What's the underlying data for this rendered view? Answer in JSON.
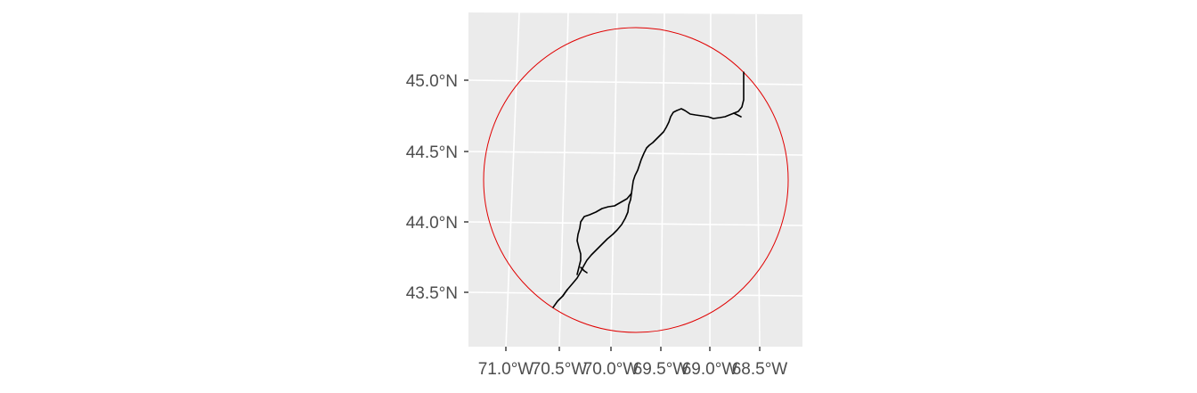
{
  "map": {
    "y_tick_labels": [
      "45.0°N",
      "44.5°N",
      "44.0°N",
      "43.5°N"
    ],
    "x_tick_labels": [
      "71.0°W",
      "70.5°W",
      "70.0°W",
      "69.5°W",
      "69.0°W",
      "68.5°W"
    ],
    "colors": {
      "panel_background": "#ebebeb",
      "grid": "#ffffff",
      "route": "#000000",
      "buffer_circle": "#e00000",
      "tick_text": "#4d4d4d"
    }
  }
}
